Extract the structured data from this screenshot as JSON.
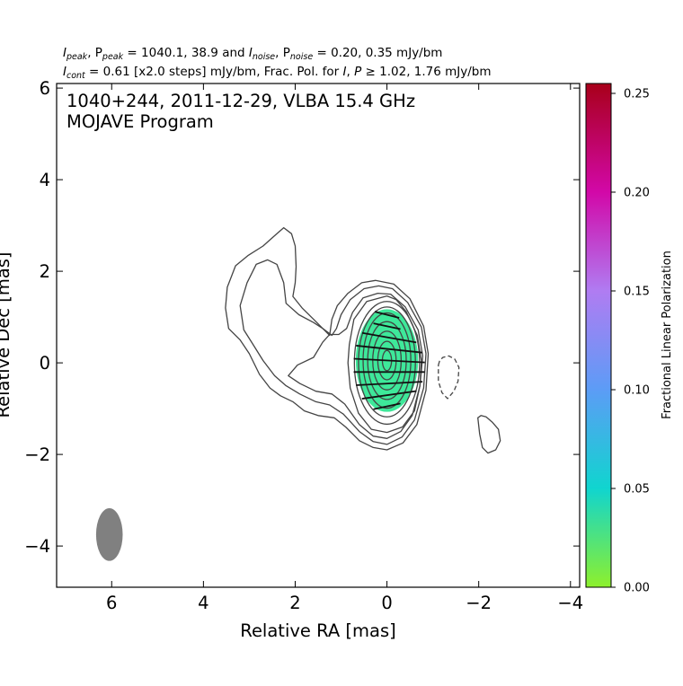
{
  "header": {
    "line1": {
      "a": "I",
      "a_sub": "peak",
      "b": ", P",
      "b_sub": "peak",
      "c": " = 1040.1, 38.9 and ",
      "d": "I",
      "d_sub": "noise",
      "e": ", P",
      "e_sub": "noise",
      "f": " = 0.20, 0.35 mJy/bm"
    },
    "line2": {
      "a": "I",
      "a_sub": "cont",
      "b": " = 0.61 [x2.0 steps] mJy/bm, Frac. Pol. for ",
      "c": "I",
      "d": ", ",
      "e": "P",
      "f": " ≥ 1.02, 1.76 mJy/bm"
    }
  },
  "chart_data": {
    "type": "contour",
    "title": "1040+244, 2011-12-29, VLBA 15.4 GHz",
    "subtitle": "MOJAVE Program",
    "xlabel": "Relative RA [mas]",
    "ylabel": "Relative Dec [mas]",
    "xlim": [
      7.2,
      -4.2
    ],
    "ylim": [
      -4.9,
      6.1
    ],
    "xticks": [
      6,
      4,
      2,
      0,
      -2,
      -4
    ],
    "xtick_labels": [
      "6",
      "4",
      "2",
      "0",
      "−2",
      "−4"
    ],
    "yticks": [
      -4,
      -2,
      0,
      2,
      4,
      6
    ],
    "ytick_labels": [
      "−4",
      "−2",
      "0",
      "2",
      "4",
      "6"
    ],
    "beam": {
      "ra": 6.05,
      "dec": -3.75,
      "major_mas": 1.15,
      "minor_mas": 0.58,
      "pa_deg": 0,
      "color": "#808080"
    },
    "peak_ra": 0.0,
    "peak_dec": 0.0,
    "polarization_region": {
      "ra": 0.0,
      "dec": 0.05,
      "semi_ra": 0.68,
      "semi_dec": 1.12,
      "fractional_pol": 0.045,
      "color": "#3ee89a"
    },
    "evpa_ticks": [
      {
        "ra": 0.0,
        "dec": 1.05,
        "len": 0.55,
        "angle_deg": 14
      },
      {
        "ra": 0.0,
        "dec": 0.8,
        "len": 0.6,
        "angle_deg": 12
      },
      {
        "ra": -0.05,
        "dec": 0.55,
        "len": 1.2,
        "angle_deg": 10
      },
      {
        "ra": -0.05,
        "dec": 0.3,
        "len": 1.45,
        "angle_deg": 6
      },
      {
        "ra": -0.05,
        "dec": 0.05,
        "len": 1.55,
        "angle_deg": 3
      },
      {
        "ra": -0.05,
        "dec": -0.2,
        "len": 1.55,
        "angle_deg": 0
      },
      {
        "ra": -0.05,
        "dec": -0.45,
        "len": 1.45,
        "angle_deg": -3
      },
      {
        "ra": -0.05,
        "dec": -0.7,
        "len": 1.2,
        "angle_deg": -8
      },
      {
        "ra": 0.0,
        "dec": -0.95,
        "len": 0.6,
        "angle_deg": -12
      }
    ],
    "contours": [
      {
        "level_mjy_per_bm": -0.61,
        "dashed": true,
        "points": [
          [
            -1.12,
            -0.05
          ],
          [
            -1.15,
            0.05
          ],
          [
            -1.22,
            0.12
          ],
          [
            -1.35,
            0.15
          ],
          [
            -1.48,
            0.08
          ],
          [
            -1.57,
            -0.1
          ],
          [
            -1.55,
            -0.4
          ],
          [
            -1.46,
            -0.62
          ],
          [
            -1.32,
            -0.78
          ],
          [
            -1.2,
            -0.65
          ],
          [
            -1.12,
            -0.4
          ]
        ]
      },
      {
        "level_mjy_per_bm": 0.61,
        "dashed": false,
        "points": [
          [
            -1.98,
            -1.2
          ],
          [
            -2.02,
            -1.55
          ],
          [
            -2.08,
            -1.85
          ],
          [
            -2.2,
            -1.97
          ],
          [
            -2.37,
            -1.9
          ],
          [
            -2.47,
            -1.7
          ],
          [
            -2.43,
            -1.45
          ],
          [
            -2.3,
            -1.3
          ],
          [
            -2.16,
            -1.18
          ],
          [
            -2.05,
            -1.15
          ]
        ]
      },
      {
        "level_mjy_per_bm": 0.61,
        "dashed": false,
        "points": [
          [
            0.25,
            1.8
          ],
          [
            0.55,
            1.75
          ],
          [
            0.85,
            1.52
          ],
          [
            1.08,
            1.25
          ],
          [
            1.2,
            0.95
          ],
          [
            1.25,
            0.6
          ],
          [
            1.4,
            0.75
          ],
          [
            1.6,
            0.95
          ],
          [
            1.85,
            1.2
          ],
          [
            2.05,
            1.45
          ],
          [
            2.0,
            1.75
          ],
          [
            1.98,
            2.1
          ],
          [
            2.0,
            2.55
          ],
          [
            2.08,
            2.82
          ],
          [
            2.25,
            2.95
          ],
          [
            2.4,
            2.82
          ],
          [
            2.7,
            2.55
          ],
          [
            3.02,
            2.35
          ],
          [
            3.3,
            2.12
          ],
          [
            3.48,
            1.65
          ],
          [
            3.52,
            1.2
          ],
          [
            3.45,
            0.75
          ],
          [
            3.2,
            0.5
          ],
          [
            3.0,
            0.2
          ],
          [
            2.78,
            -0.25
          ],
          [
            2.55,
            -0.55
          ],
          [
            2.32,
            -0.72
          ],
          [
            2.05,
            -0.85
          ],
          [
            1.8,
            -1.05
          ],
          [
            1.5,
            -1.15
          ],
          [
            1.15,
            -1.2
          ],
          [
            0.9,
            -1.4
          ],
          [
            0.6,
            -1.7
          ],
          [
            0.3,
            -1.85
          ],
          [
            0.0,
            -1.9
          ],
          [
            -0.35,
            -1.75
          ],
          [
            -0.65,
            -1.35
          ],
          [
            -0.85,
            -0.6
          ],
          [
            -0.9,
            0.2
          ],
          [
            -0.8,
            0.8
          ],
          [
            -0.5,
            1.4
          ],
          [
            -0.15,
            1.72
          ]
        ]
      },
      {
        "level_mjy_per_bm": 1.22,
        "dashed": false,
        "points": [
          [
            0.18,
            1.68
          ],
          [
            0.5,
            1.62
          ],
          [
            0.8,
            1.38
          ],
          [
            1.0,
            1.05
          ],
          [
            1.1,
            0.75
          ],
          [
            1.2,
            0.6
          ],
          [
            1.4,
            0.75
          ],
          [
            1.6,
            0.88
          ],
          [
            1.92,
            1.05
          ],
          [
            2.2,
            1.3
          ],
          [
            2.25,
            1.75
          ],
          [
            2.4,
            2.15
          ],
          [
            2.6,
            2.25
          ],
          [
            2.85,
            2.15
          ],
          [
            3.05,
            1.75
          ],
          [
            3.2,
            1.25
          ],
          [
            3.12,
            0.72
          ],
          [
            2.95,
            0.45
          ],
          [
            2.7,
            0.05
          ],
          [
            2.45,
            -0.28
          ],
          [
            2.2,
            -0.5
          ],
          [
            1.9,
            -0.68
          ],
          [
            1.55,
            -0.85
          ],
          [
            1.25,
            -0.92
          ],
          [
            0.95,
            -1.12
          ],
          [
            0.6,
            -1.5
          ],
          [
            0.3,
            -1.72
          ],
          [
            0.0,
            -1.78
          ],
          [
            -0.33,
            -1.62
          ],
          [
            -0.6,
            -1.25
          ],
          [
            -0.8,
            -0.55
          ],
          [
            -0.85,
            0.2
          ],
          [
            -0.75,
            0.78
          ],
          [
            -0.45,
            1.32
          ],
          [
            -0.12,
            1.62
          ]
        ]
      },
      {
        "level_mjy_per_bm": 2.44,
        "dashed": false,
        "points": [
          [
            0.2,
            1.52
          ],
          [
            0.52,
            1.42
          ],
          [
            0.75,
            1.1
          ],
          [
            0.88,
            0.75
          ],
          [
            1.05,
            0.62
          ],
          [
            1.25,
            0.62
          ],
          [
            1.4,
            0.45
          ],
          [
            1.6,
            0.12
          ],
          [
            1.95,
            -0.05
          ],
          [
            2.15,
            -0.28
          ],
          [
            1.9,
            -0.45
          ],
          [
            1.55,
            -0.62
          ],
          [
            1.2,
            -0.68
          ],
          [
            0.92,
            -0.9
          ],
          [
            0.6,
            -1.35
          ],
          [
            0.3,
            -1.6
          ],
          [
            0.0,
            -1.65
          ],
          [
            -0.3,
            -1.5
          ],
          [
            -0.55,
            -1.15
          ],
          [
            -0.72,
            -0.5
          ],
          [
            -0.78,
            0.15
          ],
          [
            -0.68,
            0.72
          ],
          [
            -0.4,
            1.22
          ],
          [
            -0.08,
            1.5
          ]
        ]
      },
      {
        "level_mjy_per_bm": 4.88,
        "dashed": false,
        "points": [
          [
            0.0,
            1.46
          ],
          [
            0.44,
            1.34
          ],
          [
            0.72,
            0.95
          ],
          [
            0.82,
            0.4
          ],
          [
            0.85,
            0.0
          ],
          [
            0.8,
            -0.55
          ],
          [
            0.62,
            -1.1
          ],
          [
            0.34,
            -1.45
          ],
          [
            0.0,
            -1.52
          ],
          [
            -0.34,
            -1.4
          ],
          [
            -0.6,
            -1.05
          ],
          [
            -0.72,
            -0.5
          ],
          [
            -0.75,
            0.05
          ],
          [
            -0.66,
            0.6
          ],
          [
            -0.42,
            1.12
          ],
          [
            -0.2,
            1.38
          ]
        ]
      },
      {
        "level_mjy_per_bm": 9.76,
        "dashed": false,
        "semi_ra": 0.71,
        "semi_dec": 1.34,
        "center_dec": 0.0
      },
      {
        "level_mjy_per_bm": 19.52,
        "dashed": false,
        "semi_ra": 0.62,
        "semi_dec": 1.2,
        "center_dec": 0.02
      },
      {
        "level_mjy_per_bm": 39.04,
        "dashed": false,
        "semi_ra": 0.52,
        "semi_dec": 1.04,
        "center_dec": 0.05
      },
      {
        "level_mjy_per_bm": 78.08,
        "dashed": false,
        "semi_ra": 0.42,
        "semi_dec": 0.85,
        "center_dec": 0.05
      },
      {
        "level_mjy_per_bm": 156.16,
        "dashed": false,
        "semi_ra": 0.31,
        "semi_dec": 0.64,
        "center_dec": 0.05
      },
      {
        "level_mjy_per_bm": 312.32,
        "dashed": false,
        "semi_ra": 0.2,
        "semi_dec": 0.42,
        "center_dec": 0.05
      },
      {
        "level_mjy_per_bm": 624.64,
        "dashed": false,
        "semi_ra": 0.1,
        "semi_dec": 0.22,
        "center_dec": 0.05
      }
    ],
    "colorbar": {
      "label": "Fractional Linear Polarization",
      "range": [
        0,
        0.255
      ],
      "ticks": [
        0.0,
        0.05,
        0.1,
        0.15,
        0.2,
        0.25
      ],
      "tick_labels": [
        "0.00",
        "0.05",
        "0.10",
        "0.15",
        "0.20",
        "0.25"
      ],
      "colormap": [
        {
          "value": 0.0,
          "color": "#8ef02c"
        },
        {
          "value": 0.05,
          "color": "#10d5cf"
        },
        {
          "value": 0.1,
          "color": "#5c9cf6"
        },
        {
          "value": 0.15,
          "color": "#b07cf2"
        },
        {
          "value": 0.2,
          "color": "#d208a8"
        },
        {
          "value": 0.255,
          "color": "#a8001a"
        }
      ]
    }
  }
}
